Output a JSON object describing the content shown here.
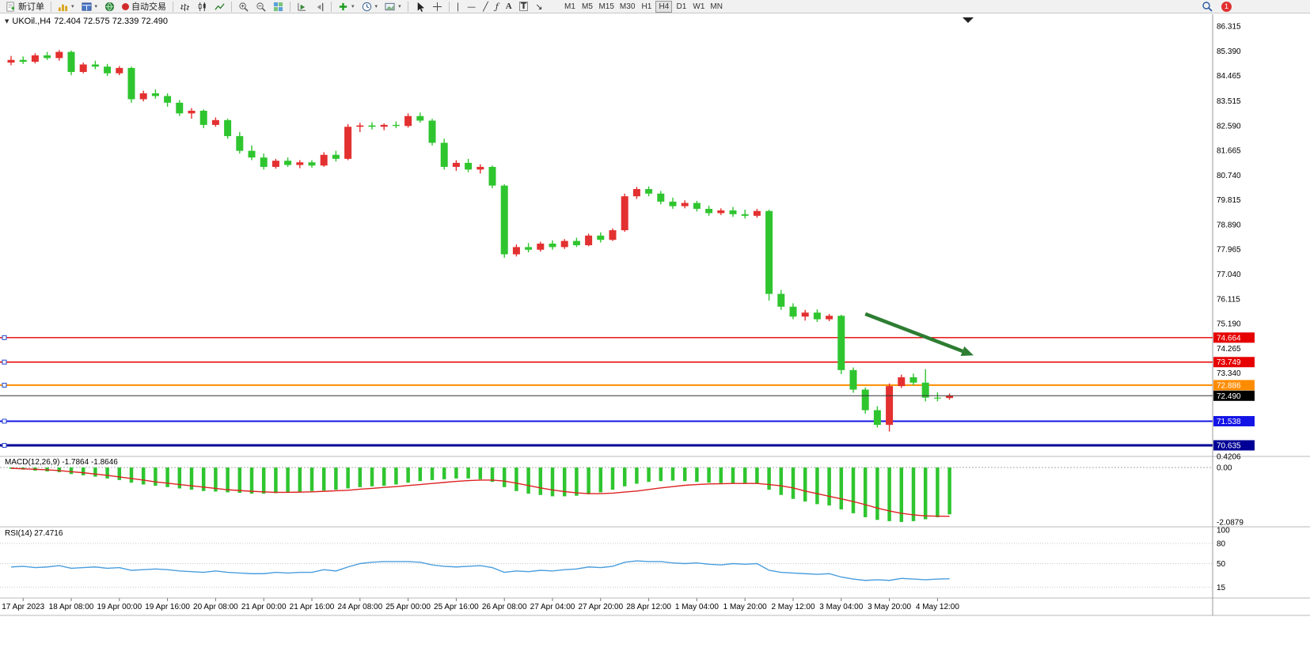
{
  "toolbar": {
    "new_order": "新订单",
    "autotrading": "自动交易",
    "timeframes": [
      "M1",
      "M5",
      "M15",
      "M30",
      "H1",
      "H4",
      "D1",
      "W1",
      "MN"
    ],
    "active_timeframe": "H4",
    "notification_count": "1"
  },
  "icons": {
    "collapse": "▼",
    "caret": "▾",
    "fibonacci": "ƒ",
    "text": "A",
    "label": "T",
    "arrows": "↘",
    "vertical_line": "∣",
    "horizontal_line": "—",
    "trendline": "╱"
  },
  "indicators": {
    "macd_label": "MACD(12,26,9) -1.7864 -1.8646",
    "rsi_label": "RSI(14) 27.4716"
  },
  "colors": {
    "bull": "#e33030",
    "bear": "#2fc52f",
    "macd_hist": "#2fc52f",
    "macd_signal": "#dd2222",
    "rsi_line": "#4a9ede",
    "arrow": "#2e7d32"
  },
  "chart_data": {
    "type": "candlestick+indicators",
    "title": "UKOil.,H4",
    "ohlc_text": "72.404 72.575 72.339 72.490",
    "price_ticks": [
      86.315,
      85.39,
      84.465,
      83.515,
      82.59,
      81.665,
      80.74,
      79.815,
      78.89,
      77.965,
      77.04,
      76.115,
      75.19,
      74.265,
      73.34
    ],
    "levels": [
      {
        "value": 74.664,
        "label": "74.664",
        "color": "#e60000",
        "width": 1.4
      },
      {
        "value": 73.749,
        "label": "73.749",
        "color": "#e60000",
        "width": 1.4
      },
      {
        "value": 72.886,
        "label": "72.886",
        "color": "#ff8c00",
        "width": 2
      },
      {
        "value": 71.538,
        "label": "71.538",
        "color": "#1414e6",
        "width": 2
      },
      {
        "value": 70.635,
        "label": "70.635",
        "color": "#000096",
        "width": 3
      }
    ],
    "current_price": {
      "value": 72.49,
      "label": "72.490",
      "color": "#000000"
    },
    "time_labels": [
      "17 Apr 2023",
      "18 Apr 08:00",
      "19 Apr 00:00",
      "19 Apr 16:00",
      "20 Apr 08:00",
      "21 Apr 00:00",
      "21 Apr 16:00",
      "24 Apr 08:00",
      "25 Apr 00:00",
      "25 Apr 16:00",
      "26 Apr 08:00",
      "27 Apr 04:00",
      "27 Apr 20:00",
      "28 Apr 12:00",
      "1 May 04:00",
      "1 May 20:00",
      "2 May 12:00",
      "3 May 04:00",
      "3 May 20:00",
      "4 May 12:00"
    ],
    "candles": [
      [
        84.95,
        85.2,
        84.85,
        85.05
      ],
      [
        85.05,
        85.18,
        84.9,
        84.98
      ],
      [
        84.98,
        85.3,
        84.92,
        85.22
      ],
      [
        85.22,
        85.35,
        85.05,
        85.12
      ],
      [
        85.12,
        85.42,
        85.02,
        85.35
      ],
      [
        85.35,
        85.4,
        84.48,
        84.6
      ],
      [
        84.6,
        84.95,
        84.55,
        84.88
      ],
      [
        84.88,
        85.02,
        84.7,
        84.8
      ],
      [
        84.8,
        84.9,
        84.45,
        84.55
      ],
      [
        84.55,
        84.82,
        84.48,
        84.75
      ],
      [
        84.75,
        84.8,
        83.45,
        83.58
      ],
      [
        83.58,
        83.9,
        83.5,
        83.8
      ],
      [
        83.8,
        83.95,
        83.6,
        83.7
      ],
      [
        83.7,
        83.8,
        83.3,
        83.45
      ],
      [
        83.45,
        83.55,
        82.95,
        83.05
      ],
      [
        83.05,
        83.25,
        82.85,
        83.15
      ],
      [
        83.15,
        83.2,
        82.5,
        82.62
      ],
      [
        82.62,
        82.9,
        82.55,
        82.8
      ],
      [
        82.8,
        82.85,
        82.1,
        82.2
      ],
      [
        82.2,
        82.35,
        81.55,
        81.65
      ],
      [
        81.65,
        81.85,
        81.3,
        81.4
      ],
      [
        81.4,
        81.55,
        80.95,
        81.05
      ],
      [
        81.05,
        81.35,
        80.98,
        81.28
      ],
      [
        81.28,
        81.4,
        81.05,
        81.12
      ],
      [
        81.12,
        81.3,
        81.0,
        81.22
      ],
      [
        81.22,
        81.3,
        81.02,
        81.1
      ],
      [
        81.1,
        81.6,
        81.05,
        81.5
      ],
      [
        81.5,
        81.65,
        81.25,
        81.35
      ],
      [
        81.35,
        82.65,
        81.3,
        82.55
      ],
      [
        82.55,
        82.7,
        82.35,
        82.6
      ],
      [
        82.6,
        82.72,
        82.45,
        82.55
      ],
      [
        82.55,
        82.68,
        82.42,
        82.62
      ],
      [
        82.62,
        82.75,
        82.5,
        82.58
      ],
      [
        82.58,
        83.05,
        82.52,
        82.95
      ],
      [
        82.95,
        83.08,
        82.7,
        82.78
      ],
      [
        82.78,
        82.85,
        81.85,
        81.95
      ],
      [
        81.95,
        82.1,
        80.95,
        81.05
      ],
      [
        81.05,
        81.3,
        80.9,
        81.2
      ],
      [
        81.2,
        81.35,
        80.85,
        80.95
      ],
      [
        80.95,
        81.15,
        80.8,
        81.05
      ],
      [
        81.05,
        81.1,
        80.25,
        80.35
      ],
      [
        80.35,
        80.4,
        77.65,
        77.78
      ],
      [
        77.78,
        78.15,
        77.7,
        78.05
      ],
      [
        78.05,
        78.2,
        77.85,
        77.95
      ],
      [
        77.95,
        78.25,
        77.88,
        78.18
      ],
      [
        78.18,
        78.3,
        77.95,
        78.05
      ],
      [
        78.05,
        78.35,
        77.98,
        78.28
      ],
      [
        78.28,
        78.4,
        78.05,
        78.12
      ],
      [
        78.12,
        78.55,
        78.08,
        78.48
      ],
      [
        78.48,
        78.6,
        78.22,
        78.32
      ],
      [
        78.32,
        78.75,
        78.28,
        78.68
      ],
      [
        78.68,
        80.05,
        78.62,
        79.95
      ],
      [
        79.95,
        80.3,
        79.85,
        80.22
      ],
      [
        80.22,
        80.32,
        79.95,
        80.05
      ],
      [
        80.05,
        80.15,
        79.65,
        79.75
      ],
      [
        79.75,
        79.9,
        79.48,
        79.58
      ],
      [
        79.58,
        79.8,
        79.5,
        79.7
      ],
      [
        79.7,
        79.78,
        79.38,
        79.48
      ],
      [
        79.48,
        79.6,
        79.22,
        79.32
      ],
      [
        79.32,
        79.5,
        79.25,
        79.42
      ],
      [
        79.42,
        79.55,
        79.18,
        79.28
      ],
      [
        79.28,
        79.45,
        79.12,
        79.22
      ],
      [
        79.22,
        79.48,
        79.15,
        79.4
      ],
      [
        79.4,
        79.45,
        76.05,
        76.3
      ],
      [
        76.3,
        76.45,
        75.7,
        75.82
      ],
      [
        75.82,
        75.95,
        75.35,
        75.45
      ],
      [
        75.45,
        75.7,
        75.3,
        75.6
      ],
      [
        75.6,
        75.72,
        75.25,
        75.35
      ],
      [
        75.35,
        75.55,
        75.28,
        75.48
      ],
      [
        75.48,
        75.52,
        73.3,
        73.45
      ],
      [
        73.45,
        73.55,
        72.6,
        72.72
      ],
      [
        72.72,
        72.8,
        71.82,
        71.95
      ],
      [
        71.95,
        72.1,
        71.3,
        71.4
      ],
      [
        71.4,
        72.95,
        71.15,
        72.85
      ],
      [
        72.85,
        73.28,
        72.78,
        73.18
      ],
      [
        73.18,
        73.32,
        72.88,
        72.98
      ],
      [
        72.98,
        73.48,
        72.28,
        72.42
      ],
      [
        72.42,
        72.62,
        72.28,
        72.4
      ],
      [
        72.404,
        72.575,
        72.339,
        72.49
      ]
    ],
    "macd": {
      "scale": [
        {
          "v": 0.4206,
          "label": "0.4206"
        },
        {
          "v": 0,
          "label": "0.00"
        },
        {
          "v": -2.0879,
          "label": "-2.0879"
        }
      ],
      "histogram": [
        -0.05,
        -0.08,
        -0.12,
        -0.15,
        -0.18,
        -0.25,
        -0.3,
        -0.35,
        -0.42,
        -0.48,
        -0.58,
        -0.65,
        -0.7,
        -0.75,
        -0.8,
        -0.85,
        -0.9,
        -0.92,
        -0.95,
        -0.97,
        -1.0,
        -1.0,
        -0.98,
        -0.95,
        -0.92,
        -0.9,
        -0.88,
        -0.85,
        -0.8,
        -0.75,
        -0.72,
        -0.7,
        -0.65,
        -0.58,
        -0.52,
        -0.48,
        -0.45,
        -0.42,
        -0.42,
        -0.45,
        -0.55,
        -0.75,
        -0.9,
        -1.0,
        -1.05,
        -1.1,
        -1.1,
        -1.08,
        -1.02,
        -0.95,
        -0.85,
        -0.72,
        -0.62,
        -0.55,
        -0.52,
        -0.5,
        -0.52,
        -0.55,
        -0.58,
        -0.6,
        -0.6,
        -0.6,
        -0.62,
        -0.85,
        -1.05,
        -1.2,
        -1.3,
        -1.4,
        -1.45,
        -1.6,
        -1.75,
        -1.9,
        -2.0,
        -2.05,
        -2.08,
        -2.05,
        -1.98,
        -1.9,
        -1.79
      ],
      "signal": [
        -0.03,
        -0.05,
        -0.07,
        -0.09,
        -0.12,
        -0.16,
        -0.2,
        -0.25,
        -0.3,
        -0.36,
        -0.42,
        -0.48,
        -0.55,
        -0.6,
        -0.65,
        -0.7,
        -0.75,
        -0.8,
        -0.85,
        -0.88,
        -0.91,
        -0.93,
        -0.95,
        -0.95,
        -0.94,
        -0.93,
        -0.91,
        -0.89,
        -0.87,
        -0.83,
        -0.8,
        -0.76,
        -0.73,
        -0.69,
        -0.65,
        -0.61,
        -0.57,
        -0.53,
        -0.5,
        -0.48,
        -0.48,
        -0.52,
        -0.6,
        -0.69,
        -0.78,
        -0.86,
        -0.92,
        -0.97,
        -1.0,
        -1.0,
        -0.98,
        -0.94,
        -0.9,
        -0.84,
        -0.78,
        -0.73,
        -0.68,
        -0.65,
        -0.63,
        -0.62,
        -0.61,
        -0.61,
        -0.61,
        -0.65,
        -0.7,
        -0.78,
        -0.9,
        -1.0,
        -1.1,
        -1.2,
        -1.3,
        -1.42,
        -1.55,
        -1.66,
        -1.75,
        -1.81,
        -1.85,
        -1.86,
        -1.8646
      ]
    },
    "rsi": {
      "scale": [
        {
          "v": 100,
          "label": "100"
        },
        {
          "v": 80,
          "label": "80"
        },
        {
          "v": 50,
          "label": "50"
        },
        {
          "v": 15,
          "label": "15"
        }
      ],
      "level_lines": [
        80,
        50,
        15
      ],
      "values": [
        45,
        46,
        44,
        45,
        47,
        43,
        44,
        45,
        43,
        44,
        40,
        41,
        42,
        41,
        39,
        38,
        37,
        39,
        37,
        36,
        35,
        35,
        37,
        36,
        37,
        37,
        41,
        39,
        45,
        50,
        52,
        53,
        53,
        53,
        52,
        48,
        46,
        45,
        46,
        47,
        44,
        37,
        39,
        38,
        40,
        39,
        41,
        42,
        45,
        44,
        46,
        52,
        54,
        53,
        53,
        51,
        50,
        51,
        49,
        48,
        50,
        49,
        50,
        40,
        37,
        36,
        35,
        34,
        35,
        30,
        27,
        25,
        26,
        25,
        28,
        27,
        26,
        27,
        27.47
      ]
    },
    "annotation_arrow": {
      "from_index": 71,
      "from_price": 75.55,
      "to_index": 80,
      "to_price": 74.0
    }
  }
}
